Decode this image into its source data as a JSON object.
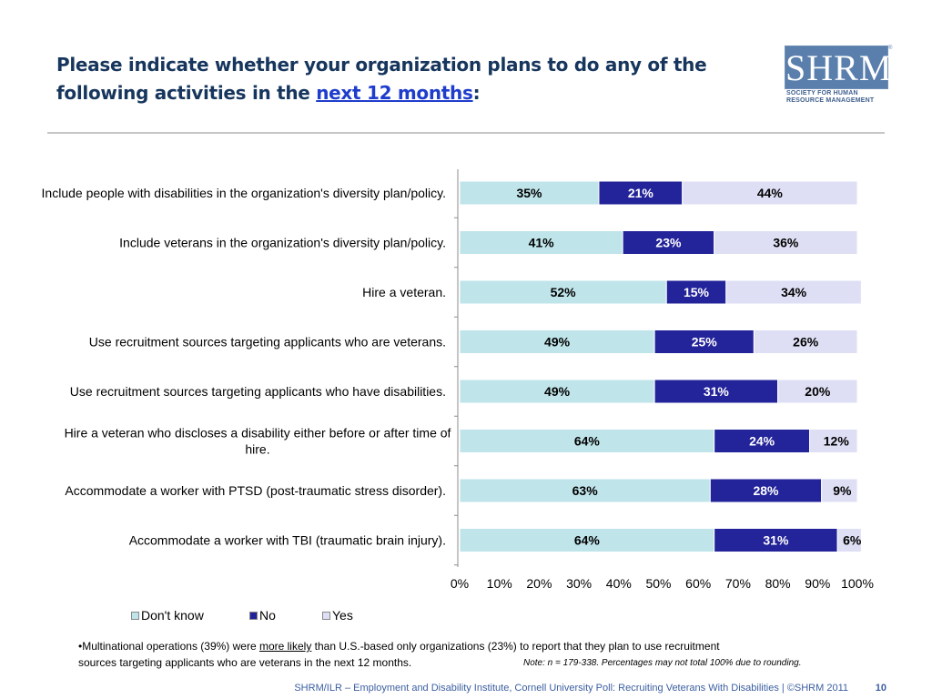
{
  "slide": {
    "title_part1": "Please indicate whether your organization plans to do any of the following activities in the ",
    "title_highlight": "next 12 months",
    "title_end": ":",
    "logo_text": "SHRM",
    "logo_trademark": "®",
    "logo_sub_line1": "SOCIETY FOR HUMAN",
    "logo_sub_line2": "RESOURCE MANAGEMENT",
    "note_prefix": "•Multinational operations (39%) were ",
    "note_emph": "more likely",
    "note_middle": " than  U.S.-based only organizations (23%) to report that they plan to use recruitment",
    "note_line2": "sources targeting applicants who are veterans in the next 12 months.",
    "note_small": "Note: n = 179-338. Percentages may not total 100% due to rounding.",
    "footer_source": "SHRM/ILR –  Employment and Disability Institute, Cornell University Poll: Recruiting Veterans With Disabilities | ©SHRM 2011",
    "page_number": "10"
  },
  "chart_data": {
    "type": "bar",
    "orientation": "horizontal",
    "stacked": true,
    "categories": [
      "Include people with disabilities in the organization's diversity plan/policy.",
      "Include veterans in the organization's diversity plan/policy.",
      "Hire a veteran.",
      "Use recruitment sources targeting applicants who are veterans.",
      "Use recruitment sources targeting applicants who have disabilities.",
      "Hire a veteran who discloses a disability either before or after time of hire.",
      "Accommodate a worker with PTSD (post-traumatic stress disorder).",
      "Accommodate a worker with TBI (traumatic brain injury)."
    ],
    "series": [
      {
        "name": "Don't know",
        "values": [
          35,
          41,
          52,
          49,
          49,
          64,
          63,
          64
        ],
        "color": "#bfe4ea"
      },
      {
        "name": "No",
        "values": [
          21,
          23,
          15,
          25,
          31,
          24,
          28,
          31
        ],
        "color": "#23239a"
      },
      {
        "name": "Yes",
        "values": [
          44,
          36,
          34,
          26,
          20,
          12,
          9,
          6
        ],
        "color": "#dedff4"
      }
    ],
    "xlim": [
      0,
      100
    ],
    "x_ticks": [
      "0%",
      "10%",
      "20%",
      "30%",
      "40%",
      "50%",
      "60%",
      "70%",
      "80%",
      "90%",
      "100%"
    ],
    "value_suffix": "%",
    "legend_position": "bottom"
  }
}
